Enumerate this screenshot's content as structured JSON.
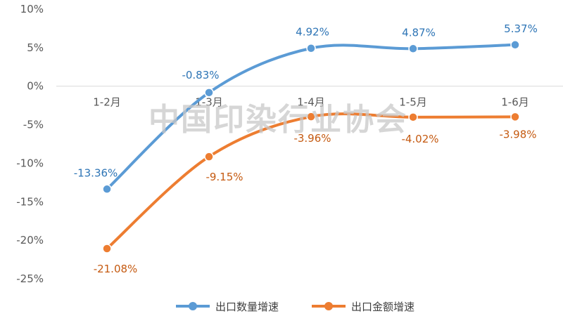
{
  "chart_data": {
    "type": "line",
    "title": "",
    "xlabel": "",
    "ylabel": "",
    "categories": [
      "1-2月",
      "1-3月",
      "1-4月",
      "1-5月",
      "1-6月"
    ],
    "y_ticks": [
      "10%",
      "5%",
      "0%",
      "-5%",
      "-10%",
      "-15%",
      "-20%",
      "-25%"
    ],
    "ylim": [
      -25,
      10
    ],
    "grid": false,
    "legend_position": "bottom",
    "series": [
      {
        "name": "出口数量增速",
        "color": "#5B9BD5",
        "label_color": "#2E75B6",
        "values": [
          -13.36,
          -0.83,
          4.92,
          4.87,
          5.37
        ],
        "labels": [
          "-13.36%",
          "-0.83%",
          "4.92%",
          "4.87%",
          "5.37%"
        ]
      },
      {
        "name": "出口金额增速",
        "color": "#ED7D31",
        "label_color": "#C55A11",
        "values": [
          -21.08,
          -9.15,
          -3.96,
          -4.02,
          -3.98
        ],
        "labels": [
          "-21.08%",
          "-9.15%",
          "-3.96%",
          "-4.02%",
          "-3.98%"
        ]
      }
    ],
    "watermark": "中国印染行业协会"
  }
}
